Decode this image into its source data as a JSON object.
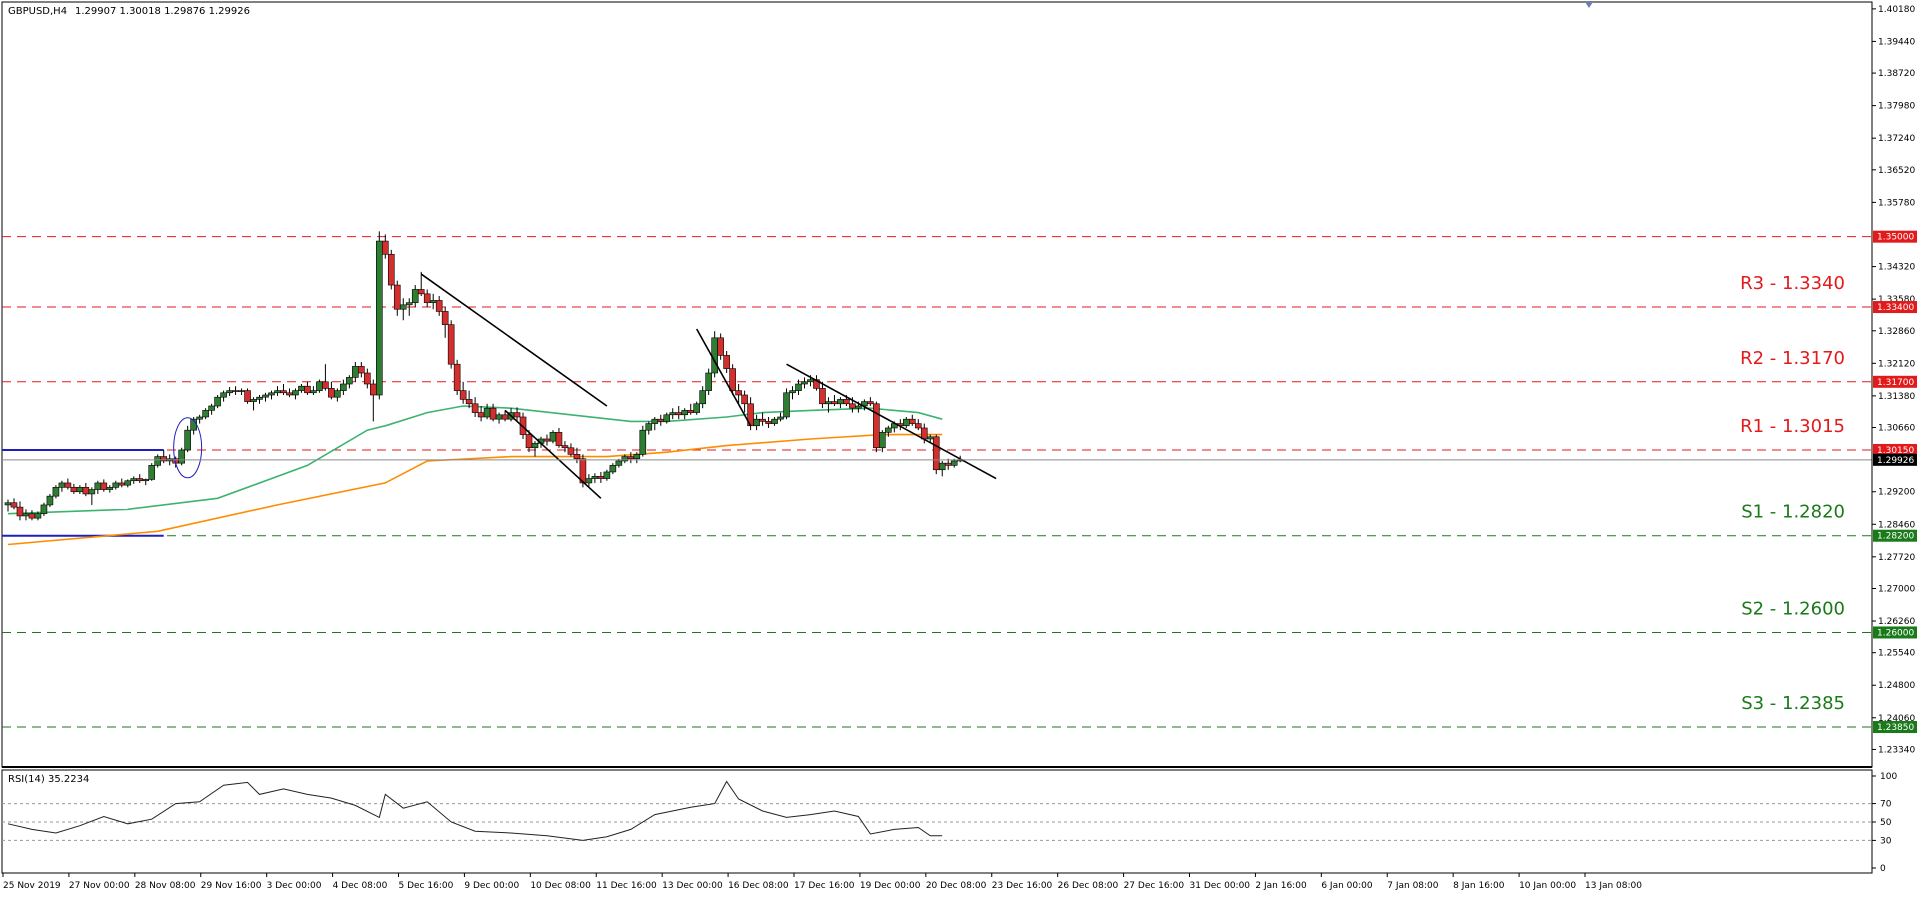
{
  "header": {
    "symbol": "GBPUSD,H4",
    "ohlc": "1.29907 1.30018 1.29876 1.29926"
  },
  "rsi_header": "RSI(14) 35.2234",
  "price_axis_labels": [
    "1.40180",
    "1.39440",
    "1.38720",
    "1.37980",
    "1.37240",
    "1.36520",
    "1.35780",
    "1.34320",
    "1.33580",
    "1.32860",
    "1.32120",
    "1.31380",
    "1.30660",
    "1.29200",
    "1.28460",
    "1.27720",
    "1.27000",
    "1.26260",
    "1.25540",
    "1.24800",
    "1.24060",
    "1.23340"
  ],
  "rsi_axis_labels": [
    "100",
    "70",
    "50",
    "30",
    "0"
  ],
  "time_axis_labels": [
    "25 Nov 2019",
    "27 Nov 00:00",
    "28 Nov 08:00",
    "29 Nov 16:00",
    "3 Dec 00:00",
    "4 Dec 08:00",
    "5 Dec 16:00",
    "9 Dec 00:00",
    "10 Dec 08:00",
    "11 Dec 16:00",
    "13 Dec 00:00",
    "16 Dec 08:00",
    "17 Dec 16:00",
    "19 Dec 00:00",
    "20 Dec 08:00",
    "23 Dec 16:00",
    "26 Dec 08:00",
    "27 Dec 16:00",
    "31 Dec 00:00",
    "2 Jan 16:00",
    "6 Jan 00:00",
    "7 Jan 08:00",
    "8 Jan 16:00",
    "10 Jan 00:00",
    "13 Jan 08:00"
  ],
  "levels": [
    {
      "price": 1.35,
      "tag": "1.35000",
      "label": "",
      "color": "#e31a1c",
      "tagbg": "#e31a1c"
    },
    {
      "price": 1.334,
      "tag": "1.33400",
      "label": "R3 - 1.3340",
      "color": "#e31a1c",
      "tagbg": "#e31a1c"
    },
    {
      "price": 1.317,
      "tag": "1.31700",
      "label": "R2 - 1.3170",
      "color": "#e31a1c",
      "tagbg": "#e31a1c"
    },
    {
      "price": 1.3015,
      "tag": "1.30150",
      "label": "R1 - 1.3015",
      "color": "#e31a1c",
      "tagbg": "#e31a1c"
    },
    {
      "price": 1.282,
      "tag": "1.28200",
      "label": "S1 - 1.2820",
      "color": "#1a7a1a",
      "tagbg": "#1a7a1a"
    },
    {
      "price": 1.26,
      "tag": "1.26000",
      "label": "S2 - 1.2600",
      "color": "#1a7a1a",
      "tagbg": "#1a7a1a"
    },
    {
      "price": 1.2385,
      "tag": "1.23850",
      "label": "S3 - 1.2385",
      "color": "#1a7a1a",
      "tagbg": "#1a7a1a"
    }
  ],
  "current_price": {
    "price": 1.29926,
    "tag": "1.29926"
  },
  "colors": {
    "bull": "#2e7d32",
    "bear": "#d32f2f",
    "ma_fast": "#3cb371",
    "ma_slow": "#ff8c00",
    "range": "#1f1fbf",
    "trendline": "#000000",
    "rsi": "#222222"
  },
  "chart_data": {
    "type": "candlestick",
    "ylim": [
      1.231,
      1.402
    ],
    "rsi_ylim": [
      0,
      100
    ],
    "x_index_range": [
      0,
      265
    ],
    "candles": [
      [
        1.289,
        1.2902,
        1.2875,
        1.2895
      ],
      [
        1.2895,
        1.2905,
        1.288,
        1.2885
      ],
      [
        1.2885,
        1.2898,
        1.2855,
        1.2865
      ],
      [
        1.2865,
        1.288,
        1.2855,
        1.287
      ],
      [
        1.287,
        1.2878,
        1.2855,
        1.286
      ],
      [
        1.286,
        1.2875,
        1.2855,
        1.287
      ],
      [
        1.287,
        1.2895,
        1.2865,
        1.289
      ],
      [
        1.289,
        1.2915,
        1.2885,
        1.291
      ],
      [
        1.291,
        1.2935,
        1.2905,
        1.293
      ],
      [
        1.293,
        1.2945,
        1.292,
        1.294
      ],
      [
        1.294,
        1.295,
        1.2925,
        1.293
      ],
      [
        1.293,
        1.2938,
        1.2915,
        1.292
      ],
      [
        1.292,
        1.2935,
        1.2915,
        1.293
      ],
      [
        1.293,
        1.294,
        1.291,
        1.2915
      ],
      [
        1.2915,
        1.293,
        1.289,
        1.2925
      ],
      [
        1.2925,
        1.2945,
        1.2915,
        1.294
      ],
      [
        1.294,
        1.2948,
        1.292,
        1.2925
      ],
      [
        1.2925,
        1.2935,
        1.2918,
        1.293
      ],
      [
        1.293,
        1.2945,
        1.2925,
        1.294
      ],
      [
        1.294,
        1.295,
        1.293,
        1.2935
      ],
      [
        1.2935,
        1.2948,
        1.293,
        1.2945
      ],
      [
        1.2945,
        1.2955,
        1.2938,
        1.295
      ],
      [
        1.295,
        1.296,
        1.294,
        1.2945
      ],
      [
        1.2945,
        1.295,
        1.2935,
        1.2948
      ],
      [
        1.2948,
        1.2985,
        1.2945,
        1.298
      ],
      [
        1.298,
        1.3005,
        1.2975,
        1.3
      ],
      [
        1.3,
        1.3015,
        1.2985,
        1.299
      ],
      [
        1.299,
        1.3005,
        1.298,
        1.2995
      ],
      [
        1.2995,
        1.3,
        1.2975,
        1.2985
      ],
      [
        1.2985,
        1.302,
        1.298,
        1.3015
      ],
      [
        1.3015,
        1.307,
        1.301,
        1.306
      ],
      [
        1.306,
        1.309,
        1.305,
        1.3085
      ],
      [
        1.3085,
        1.3095,
        1.3075,
        1.309
      ],
      [
        1.309,
        1.311,
        1.3085,
        1.3105
      ],
      [
        1.3105,
        1.312,
        1.3095,
        1.3115
      ],
      [
        1.3115,
        1.314,
        1.311,
        1.3135
      ],
      [
        1.3135,
        1.315,
        1.3125,
        1.3145
      ],
      [
        1.3145,
        1.3158,
        1.3138,
        1.315
      ],
      [
        1.315,
        1.316,
        1.314,
        1.3148
      ],
      [
        1.3148,
        1.3155,
        1.314,
        1.315
      ],
      [
        1.315,
        1.3155,
        1.312,
        1.3125
      ],
      [
        1.3125,
        1.3135,
        1.3105,
        1.313
      ],
      [
        1.313,
        1.314,
        1.312,
        1.3135
      ],
      [
        1.3135,
        1.3145,
        1.3125,
        1.314
      ],
      [
        1.314,
        1.315,
        1.313,
        1.3145
      ],
      [
        1.3145,
        1.316,
        1.3138,
        1.315
      ],
      [
        1.315,
        1.3165,
        1.314,
        1.3145
      ],
      [
        1.3145,
        1.3155,
        1.3135,
        1.314
      ],
      [
        1.314,
        1.3155,
        1.313,
        1.315
      ],
      [
        1.315,
        1.3165,
        1.3145,
        1.316
      ],
      [
        1.316,
        1.317,
        1.314,
        1.3145
      ],
      [
        1.3145,
        1.316,
        1.314,
        1.315
      ],
      [
        1.315,
        1.3175,
        1.3145,
        1.317
      ],
      [
        1.317,
        1.321,
        1.315,
        1.3155
      ],
      [
        1.3155,
        1.317,
        1.313,
        1.3135
      ],
      [
        1.3135,
        1.3155,
        1.3125,
        1.315
      ],
      [
        1.315,
        1.3175,
        1.314,
        1.3165
      ],
      [
        1.3165,
        1.3185,
        1.3155,
        1.318
      ],
      [
        1.318,
        1.3215,
        1.317,
        1.3205
      ],
      [
        1.3205,
        1.3215,
        1.318,
        1.319
      ],
      [
        1.319,
        1.32,
        1.3155,
        1.3165
      ],
      [
        1.3165,
        1.3175,
        1.308,
        1.314
      ],
      [
        1.314,
        1.3512,
        1.313,
        1.349
      ],
      [
        1.349,
        1.3505,
        1.345,
        1.346
      ],
      [
        1.346,
        1.347,
        1.338,
        1.339
      ],
      [
        1.339,
        1.34,
        1.332,
        1.3335
      ],
      [
        1.3335,
        1.336,
        1.331,
        1.3345
      ],
      [
        1.3345,
        1.336,
        1.332,
        1.335
      ],
      [
        1.335,
        1.339,
        1.334,
        1.338
      ],
      [
        1.338,
        1.342,
        1.3365,
        1.337
      ],
      [
        1.337,
        1.338,
        1.334,
        1.335
      ],
      [
        1.335,
        1.337,
        1.3335,
        1.3355
      ],
      [
        1.3355,
        1.3365,
        1.332,
        1.333
      ],
      [
        1.333,
        1.334,
        1.327,
        1.33
      ],
      [
        1.33,
        1.331,
        1.32,
        1.321
      ],
      [
        1.321,
        1.322,
        1.314,
        1.315
      ],
      [
        1.315,
        1.317,
        1.312,
        1.313
      ],
      [
        1.313,
        1.315,
        1.311,
        1.312
      ],
      [
        1.312,
        1.3135,
        1.309,
        1.31
      ],
      [
        1.31,
        1.3115,
        1.308,
        1.309
      ],
      [
        1.309,
        1.312,
        1.3085,
        1.311
      ],
      [
        1.311,
        1.312,
        1.308,
        1.3085
      ],
      [
        1.3085,
        1.31,
        1.3075,
        1.3095
      ],
      [
        1.3095,
        1.3105,
        1.308,
        1.3085
      ],
      [
        1.3085,
        1.311,
        1.308,
        1.31
      ],
      [
        1.31,
        1.3112,
        1.308,
        1.309
      ],
      [
        1.309,
        1.31,
        1.304,
        1.305
      ],
      [
        1.305,
        1.306,
        1.301,
        1.302
      ],
      [
        1.302,
        1.3035,
        1.3,
        1.303
      ],
      [
        1.303,
        1.3045,
        1.302,
        1.304
      ],
      [
        1.304,
        1.305,
        1.3025,
        1.3035
      ],
      [
        1.3035,
        1.306,
        1.303,
        1.3055
      ],
      [
        1.3055,
        1.3065,
        1.302,
        1.3025
      ],
      [
        1.3025,
        1.3035,
        1.301,
        1.302
      ],
      [
        1.302,
        1.303,
        1.3,
        1.3005
      ],
      [
        1.3005,
        1.302,
        1.2985,
        1.2995
      ],
      [
        1.2995,
        1.3005,
        1.293,
        1.294
      ],
      [
        1.294,
        1.296,
        1.293,
        1.295
      ],
      [
        1.295,
        1.2962,
        1.294,
        1.2955
      ],
      [
        1.2955,
        1.2965,
        1.294,
        1.295
      ],
      [
        1.295,
        1.297,
        1.2945,
        1.2965
      ],
      [
        1.2965,
        1.2985,
        1.296,
        1.298
      ],
      [
        1.298,
        1.2995,
        1.2975,
        1.299
      ],
      [
        1.299,
        1.3005,
        1.2985,
        1.3
      ],
      [
        1.3,
        1.301,
        1.2985,
        1.2995
      ],
      [
        1.2995,
        1.301,
        1.2985,
        1.3005
      ],
      [
        1.3005,
        1.307,
        1.3,
        1.306
      ],
      [
        1.306,
        1.308,
        1.305,
        1.3075
      ],
      [
        1.3075,
        1.309,
        1.306,
        1.3085
      ],
      [
        1.3085,
        1.3095,
        1.307,
        1.308
      ],
      [
        1.308,
        1.31,
        1.3075,
        1.3095
      ],
      [
        1.3095,
        1.311,
        1.3085,
        1.31
      ],
      [
        1.31,
        1.3115,
        1.3085,
        1.3095
      ],
      [
        1.3095,
        1.311,
        1.3085,
        1.3105
      ],
      [
        1.3105,
        1.312,
        1.3095,
        1.31
      ],
      [
        1.31,
        1.3125,
        1.3095,
        1.312
      ],
      [
        1.312,
        1.316,
        1.311,
        1.315
      ],
      [
        1.315,
        1.32,
        1.314,
        1.319
      ],
      [
        1.319,
        1.3285,
        1.318,
        1.327
      ],
      [
        1.327,
        1.328,
        1.322,
        1.323
      ],
      [
        1.323,
        1.324,
        1.319,
        1.32
      ],
      [
        1.32,
        1.321,
        1.314,
        1.315
      ],
      [
        1.315,
        1.3165,
        1.312,
        1.314
      ],
      [
        1.314,
        1.315,
        1.31,
        1.312
      ],
      [
        1.312,
        1.3135,
        1.306,
        1.307
      ],
      [
        1.307,
        1.3095,
        1.306,
        1.3085
      ],
      [
        1.3085,
        1.31,
        1.307,
        1.308
      ],
      [
        1.308,
        1.309,
        1.3065,
        1.3075
      ],
      [
        1.3075,
        1.309,
        1.307,
        1.3085
      ],
      [
        1.3085,
        1.31,
        1.308,
        1.309
      ],
      [
        1.309,
        1.3155,
        1.3085,
        1.3145
      ],
      [
        1.3145,
        1.316,
        1.313,
        1.315
      ],
      [
        1.315,
        1.3175,
        1.314,
        1.3165
      ],
      [
        1.3165,
        1.318,
        1.3155,
        1.317
      ],
      [
        1.317,
        1.3185,
        1.316,
        1.3175
      ],
      [
        1.3175,
        1.3185,
        1.315,
        1.3155
      ],
      [
        1.3155,
        1.317,
        1.311,
        1.312
      ],
      [
        1.312,
        1.3135,
        1.31,
        1.3125
      ],
      [
        1.3125,
        1.314,
        1.3115,
        1.312
      ],
      [
        1.312,
        1.3135,
        1.311,
        1.313
      ],
      [
        1.313,
        1.314,
        1.3115,
        1.312
      ],
      [
        1.312,
        1.3135,
        1.31,
        1.311
      ],
      [
        1.311,
        1.3125,
        1.31,
        1.3115
      ],
      [
        1.3115,
        1.313,
        1.3105,
        1.3125
      ],
      [
        1.3125,
        1.3135,
        1.3115,
        1.312
      ],
      [
        1.312,
        1.3125,
        1.301,
        1.302
      ],
      [
        1.302,
        1.306,
        1.301,
        1.3055
      ],
      [
        1.3055,
        1.307,
        1.3045,
        1.3065
      ],
      [
        1.3065,
        1.308,
        1.3055,
        1.3075
      ],
      [
        1.3075,
        1.3085,
        1.306,
        1.307
      ],
      [
        1.307,
        1.309,
        1.3065,
        1.3085
      ],
      [
        1.3085,
        1.3095,
        1.307,
        1.3075
      ],
      [
        1.3075,
        1.3085,
        1.306,
        1.3065
      ],
      [
        1.3065,
        1.3075,
        1.303,
        1.304
      ],
      [
        1.304,
        1.305,
        1.303,
        1.3045
      ],
      [
        1.3045,
        1.305,
        1.296,
        1.297
      ],
      [
        1.297,
        1.299,
        1.2955,
        1.2985
      ],
      [
        1.2985,
        1.2995,
        1.297,
        1.298
      ],
      [
        1.298,
        1.2995,
        1.2975,
        1.299
      ],
      [
        1.299,
        1.3002,
        1.2987,
        1.2993
      ]
    ],
    "ma_fast": [
      [
        0,
        1.287
      ],
      [
        20,
        1.288
      ],
      [
        35,
        1.2905
      ],
      [
        50,
        1.298
      ],
      [
        60,
        1.306
      ],
      [
        63,
        1.307
      ],
      [
        70,
        1.31
      ],
      [
        76,
        1.3115
      ],
      [
        84,
        1.311
      ],
      [
        94,
        1.3095
      ],
      [
        104,
        1.308
      ],
      [
        110,
        1.308
      ],
      [
        120,
        1.309
      ],
      [
        126,
        1.31
      ],
      [
        134,
        1.3105
      ],
      [
        144,
        1.311
      ],
      [
        152,
        1.31
      ],
      [
        156,
        1.3085
      ]
    ],
    "ma_slow": [
      [
        0,
        1.28
      ],
      [
        25,
        1.283
      ],
      [
        45,
        1.289
      ],
      [
        63,
        1.294
      ],
      [
        70,
        1.299
      ],
      [
        84,
        1.3
      ],
      [
        100,
        1.3
      ],
      [
        110,
        1.301
      ],
      [
        120,
        1.3025
      ],
      [
        134,
        1.304
      ],
      [
        146,
        1.305
      ],
      [
        156,
        1.305
      ]
    ],
    "rsi": [
      [
        0,
        48
      ],
      [
        4,
        42
      ],
      [
        8,
        38
      ],
      [
        12,
        46
      ],
      [
        16,
        56
      ],
      [
        20,
        48
      ],
      [
        24,
        53
      ],
      [
        28,
        70
      ],
      [
        32,
        72
      ],
      [
        36,
        90
      ],
      [
        40,
        93
      ],
      [
        42,
        80
      ],
      [
        46,
        86
      ],
      [
        50,
        80
      ],
      [
        54,
        76
      ],
      [
        58,
        68
      ],
      [
        62,
        55
      ],
      [
        63,
        80
      ],
      [
        66,
        65
      ],
      [
        70,
        72
      ],
      [
        74,
        50
      ],
      [
        78,
        40
      ],
      [
        84,
        38
      ],
      [
        90,
        35
      ],
      [
        96,
        30
      ],
      [
        100,
        34
      ],
      [
        104,
        42
      ],
      [
        108,
        58
      ],
      [
        114,
        66
      ],
      [
        118,
        70
      ],
      [
        120,
        94
      ],
      [
        122,
        75
      ],
      [
        126,
        62
      ],
      [
        130,
        55
      ],
      [
        134,
        58
      ],
      [
        138,
        62
      ],
      [
        142,
        56
      ],
      [
        144,
        37
      ],
      [
        148,
        42
      ],
      [
        152,
        44
      ],
      [
        154,
        35
      ],
      [
        156,
        35
      ]
    ],
    "range_box": {
      "top": 1.3015,
      "bottom": 1.282,
      "end_index": 26
    },
    "ellipse": {
      "index": 30,
      "price": 1.302
    },
    "trendlines": [
      [
        [
          69,
          1.3415
        ],
        [
          100,
          1.3115
        ]
      ],
      [
        [
          83,
          1.3105
        ],
        [
          99,
          1.2905
        ]
      ],
      [
        [
          115,
          1.329
        ],
        [
          124,
          1.307
        ]
      ],
      [
        [
          130,
          1.321
        ],
        [
          165,
          1.295
        ]
      ]
    ]
  }
}
